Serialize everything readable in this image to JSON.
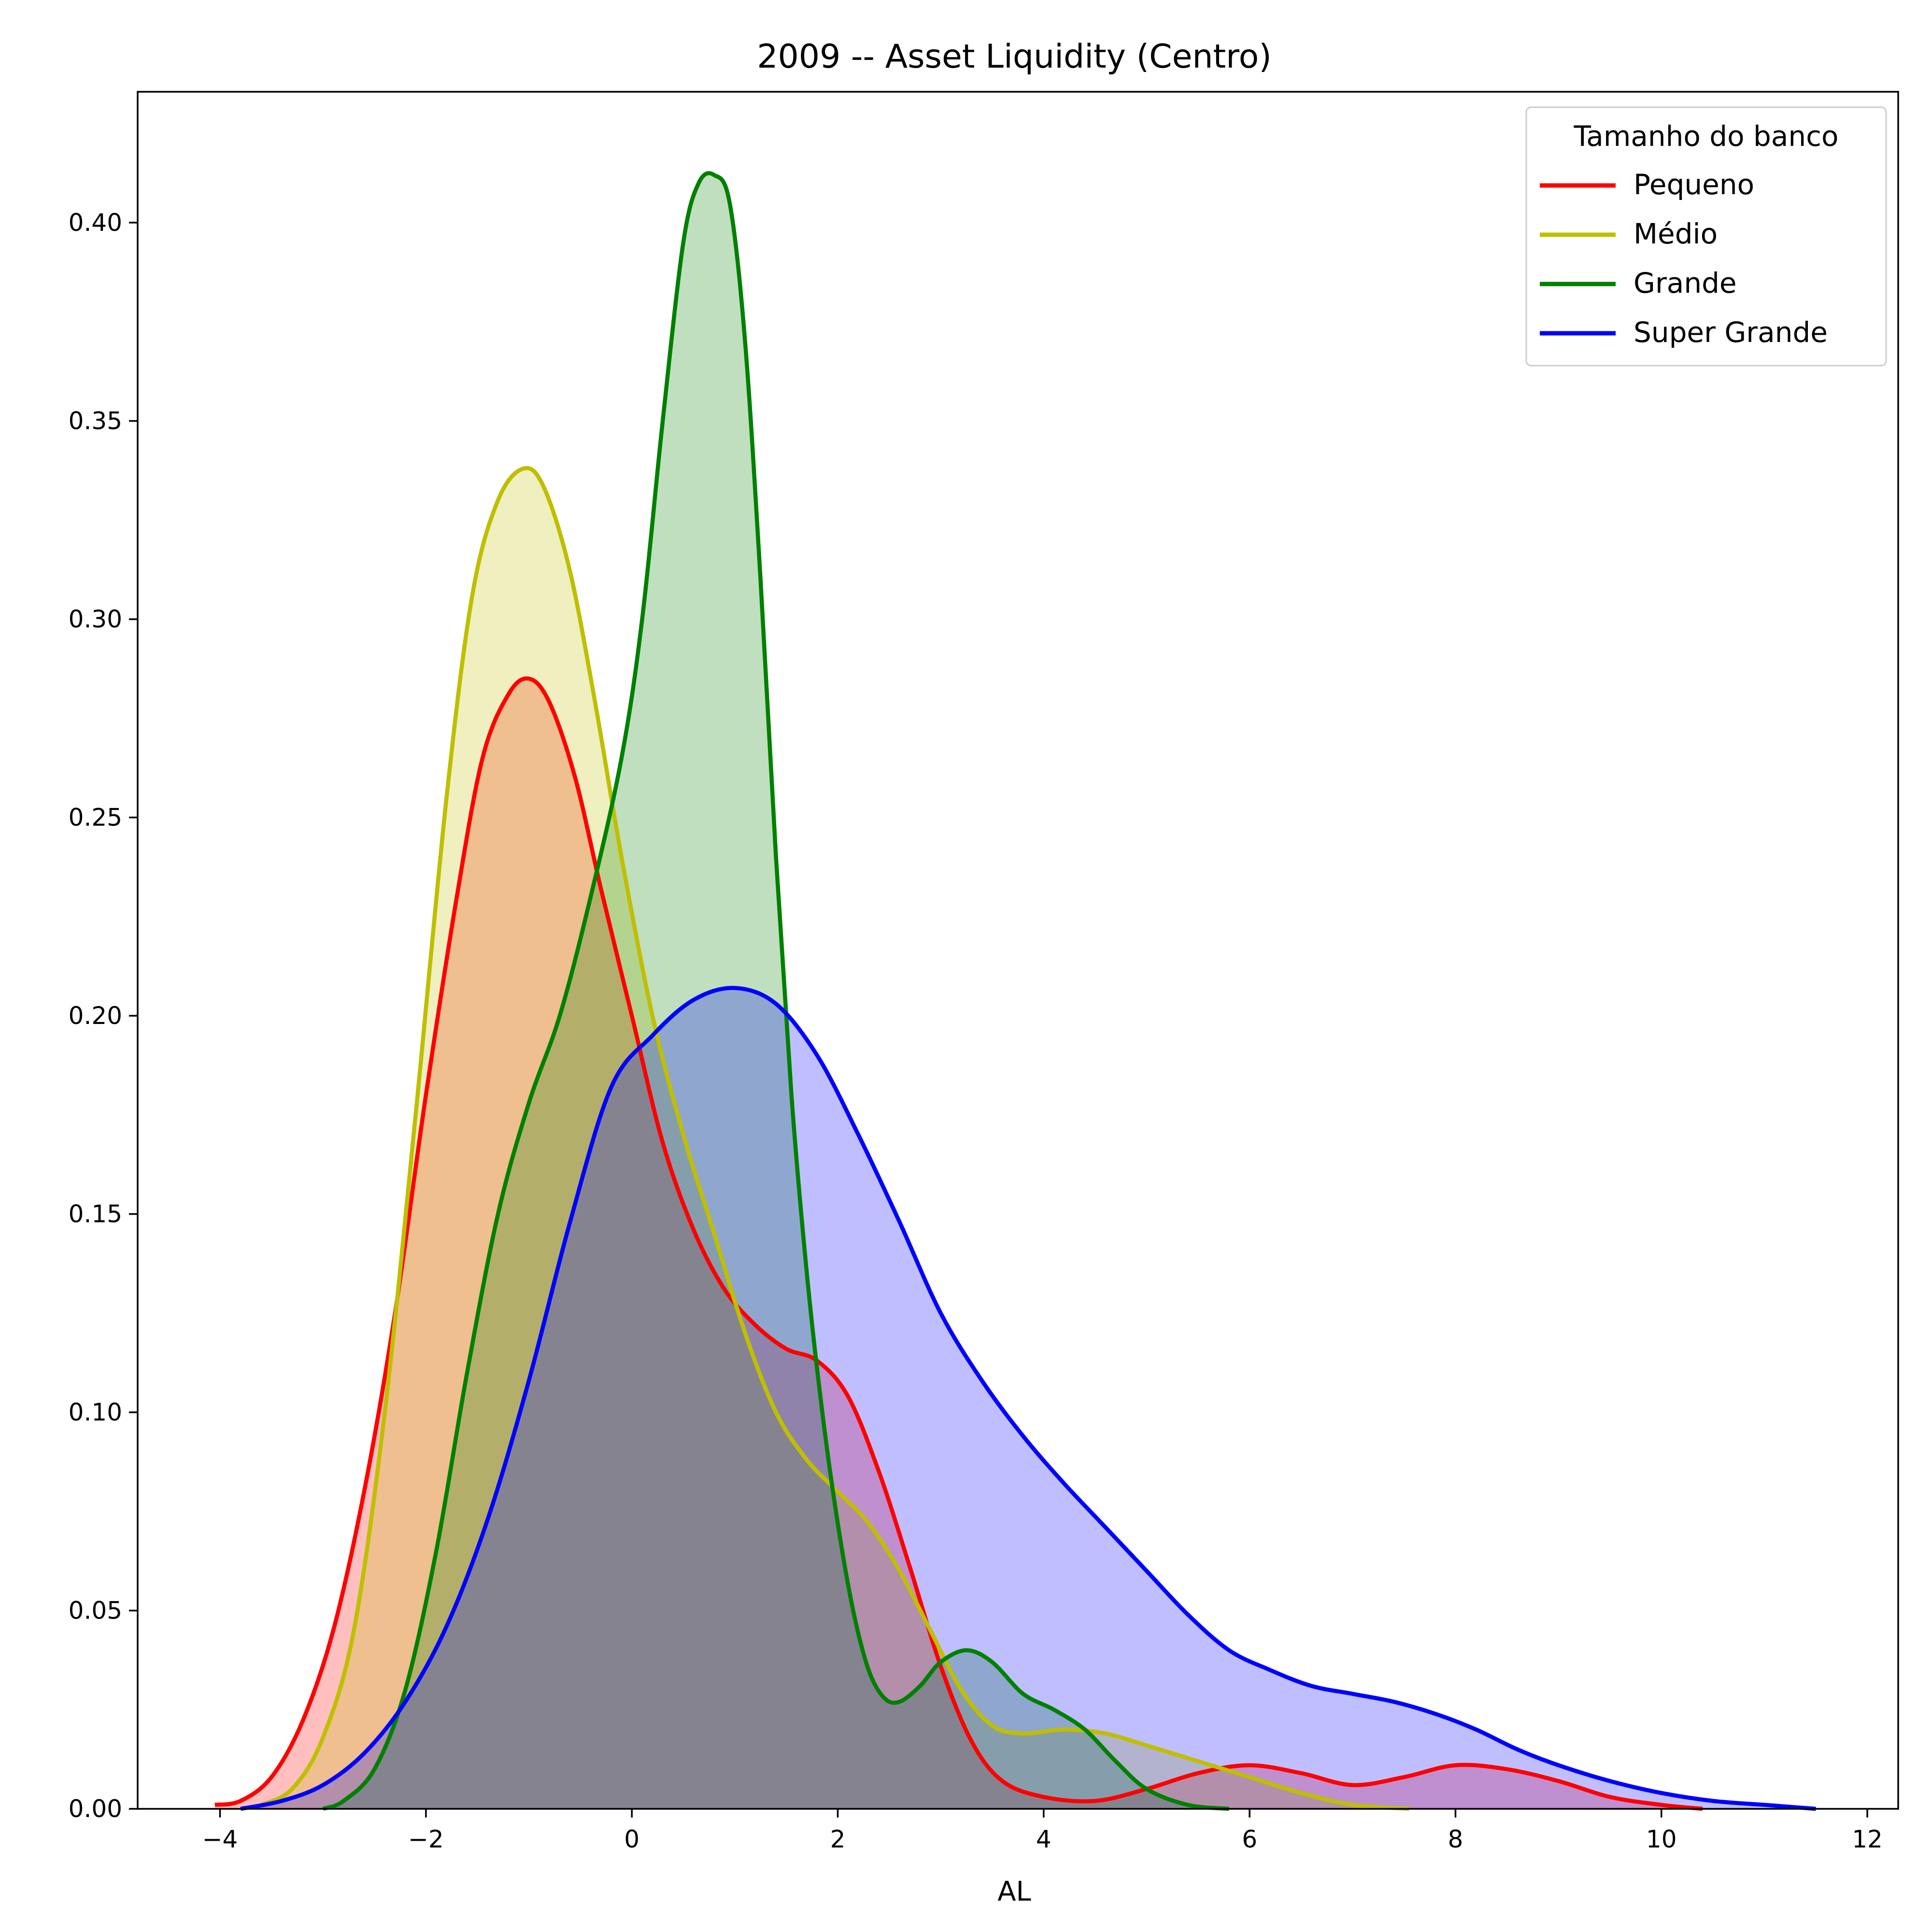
{
  "chart_data": {
    "type": "area",
    "title": "2009 -- Asset Liquidity (Centro)",
    "xlabel": "AL",
    "ylabel": "",
    "xlim": [
      -4.8,
      12.3
    ],
    "ylim": [
      0,
      0.433
    ],
    "xticks": [
      -4,
      -2,
      0,
      2,
      4,
      6,
      8,
      10,
      12
    ],
    "xtick_labels": [
      "−4",
      "−2",
      "0",
      "2",
      "4",
      "6",
      "8",
      "10",
      "12"
    ],
    "yticks": [
      0,
      0.05,
      0.1,
      0.15,
      0.2,
      0.25,
      0.3,
      0.35,
      0.4
    ],
    "ytick_labels": [
      "0.00",
      "0.05",
      "0.10",
      "0.15",
      "0.20",
      "0.25",
      "0.30",
      "0.35",
      "0.40"
    ],
    "grid": false,
    "legend": {
      "title": "Tamanho do banco",
      "placement": "top-right"
    },
    "series": [
      {
        "name": "Pequeno",
        "color": "#ff0000",
        "fill": "#ff0000",
        "points": [
          [
            -4.05,
            0.001
          ],
          [
            -3.8,
            0.002
          ],
          [
            -3.5,
            0.008
          ],
          [
            -3.2,
            0.022
          ],
          [
            -2.9,
            0.045
          ],
          [
            -2.6,
            0.08
          ],
          [
            -2.3,
            0.125
          ],
          [
            -2.0,
            0.18
          ],
          [
            -1.7,
            0.23
          ],
          [
            -1.45,
            0.265
          ],
          [
            -1.2,
            0.281
          ],
          [
            -1.0,
            0.285
          ],
          [
            -0.8,
            0.279
          ],
          [
            -0.55,
            0.26
          ],
          [
            -0.3,
            0.232
          ],
          [
            0.0,
            0.2
          ],
          [
            0.3,
            0.168
          ],
          [
            0.6,
            0.146
          ],
          [
            0.9,
            0.131
          ],
          [
            1.2,
            0.122
          ],
          [
            1.5,
            0.116
          ],
          [
            1.8,
            0.113
          ],
          [
            2.1,
            0.104
          ],
          [
            2.4,
            0.085
          ],
          [
            2.7,
            0.061
          ],
          [
            3.0,
            0.036
          ],
          [
            3.3,
            0.017
          ],
          [
            3.6,
            0.007
          ],
          [
            4.0,
            0.003
          ],
          [
            4.5,
            0.002
          ],
          [
            5.0,
            0.005
          ],
          [
            5.5,
            0.009
          ],
          [
            6.0,
            0.011
          ],
          [
            6.5,
            0.009
          ],
          [
            7.0,
            0.006
          ],
          [
            7.5,
            0.008
          ],
          [
            8.0,
            0.011
          ],
          [
            8.5,
            0.01
          ],
          [
            9.0,
            0.007
          ],
          [
            9.5,
            0.003
          ],
          [
            10.0,
            0.001
          ],
          [
            10.4,
            0.0
          ]
        ]
      },
      {
        "name": "Médio",
        "color": "#bfbf00",
        "fill": "#bfbf00",
        "points": [
          [
            -3.6,
            0.001
          ],
          [
            -3.3,
            0.005
          ],
          [
            -3.0,
            0.018
          ],
          [
            -2.7,
            0.045
          ],
          [
            -2.4,
            0.1
          ],
          [
            -2.1,
            0.175
          ],
          [
            -1.8,
            0.255
          ],
          [
            -1.55,
            0.306
          ],
          [
            -1.3,
            0.33
          ],
          [
            -1.05,
            0.338
          ],
          [
            -0.85,
            0.333
          ],
          [
            -0.6,
            0.312
          ],
          [
            -0.35,
            0.278
          ],
          [
            -0.1,
            0.24
          ],
          [
            0.2,
            0.2
          ],
          [
            0.5,
            0.17
          ],
          [
            0.8,
            0.145
          ],
          [
            1.1,
            0.12
          ],
          [
            1.4,
            0.1
          ],
          [
            1.7,
            0.088
          ],
          [
            2.0,
            0.08
          ],
          [
            2.3,
            0.072
          ],
          [
            2.6,
            0.06
          ],
          [
            2.9,
            0.045
          ],
          [
            3.2,
            0.03
          ],
          [
            3.5,
            0.021
          ],
          [
            3.8,
            0.019
          ],
          [
            4.2,
            0.02
          ],
          [
            4.6,
            0.019
          ],
          [
            5.0,
            0.016
          ],
          [
            5.5,
            0.012
          ],
          [
            6.0,
            0.008
          ],
          [
            6.5,
            0.004
          ],
          [
            7.0,
            0.001
          ],
          [
            7.55,
            0.0
          ]
        ]
      },
      {
        "name": "Grande",
        "color": "#008000",
        "fill": "#008000",
        "points": [
          [
            -3.0,
            0.0
          ],
          [
            -2.8,
            0.002
          ],
          [
            -2.5,
            0.01
          ],
          [
            -2.2,
            0.03
          ],
          [
            -1.9,
            0.065
          ],
          [
            -1.6,
            0.11
          ],
          [
            -1.3,
            0.15
          ],
          [
            -1.0,
            0.178
          ],
          [
            -0.7,
            0.2
          ],
          [
            -0.4,
            0.23
          ],
          [
            -0.1,
            0.265
          ],
          [
            0.1,
            0.3
          ],
          [
            0.3,
            0.35
          ],
          [
            0.5,
            0.395
          ],
          [
            0.65,
            0.41
          ],
          [
            0.8,
            0.412
          ],
          [
            0.95,
            0.405
          ],
          [
            1.1,
            0.37
          ],
          [
            1.25,
            0.31
          ],
          [
            1.4,
            0.24
          ],
          [
            1.55,
            0.18
          ],
          [
            1.7,
            0.135
          ],
          [
            1.85,
            0.1
          ],
          [
            2.0,
            0.072
          ],
          [
            2.15,
            0.05
          ],
          [
            2.3,
            0.035
          ],
          [
            2.45,
            0.028
          ],
          [
            2.6,
            0.027
          ],
          [
            2.8,
            0.031
          ],
          [
            3.0,
            0.037
          ],
          [
            3.25,
            0.04
          ],
          [
            3.5,
            0.037
          ],
          [
            3.8,
            0.029
          ],
          [
            4.1,
            0.025
          ],
          [
            4.4,
            0.02
          ],
          [
            4.7,
            0.012
          ],
          [
            5.0,
            0.005
          ],
          [
            5.4,
            0.001
          ],
          [
            5.8,
            0.0
          ]
        ]
      },
      {
        "name": "Super Grande",
        "color": "#0000ff",
        "fill": "#0000ff",
        "points": [
          [
            -3.8,
            0.0
          ],
          [
            -3.4,
            0.002
          ],
          [
            -3.0,
            0.006
          ],
          [
            -2.6,
            0.014
          ],
          [
            -2.2,
            0.027
          ],
          [
            -1.8,
            0.046
          ],
          [
            -1.4,
            0.073
          ],
          [
            -1.0,
            0.108
          ],
          [
            -0.6,
            0.148
          ],
          [
            -0.2,
            0.182
          ],
          [
            0.2,
            0.195
          ],
          [
            0.6,
            0.204
          ],
          [
            1.0,
            0.207
          ],
          [
            1.4,
            0.203
          ],
          [
            1.8,
            0.19
          ],
          [
            2.2,
            0.17
          ],
          [
            2.6,
            0.148
          ],
          [
            3.0,
            0.125
          ],
          [
            3.4,
            0.108
          ],
          [
            3.8,
            0.094
          ],
          [
            4.2,
            0.082
          ],
          [
            4.6,
            0.071
          ],
          [
            5.0,
            0.06
          ],
          [
            5.4,
            0.049
          ],
          [
            5.8,
            0.04
          ],
          [
            6.2,
            0.035
          ],
          [
            6.6,
            0.031
          ],
          [
            7.0,
            0.029
          ],
          [
            7.4,
            0.027
          ],
          [
            7.8,
            0.024
          ],
          [
            8.2,
            0.02
          ],
          [
            8.6,
            0.015
          ],
          [
            9.0,
            0.011
          ],
          [
            9.5,
            0.007
          ],
          [
            10.0,
            0.004
          ],
          [
            10.5,
            0.002
          ],
          [
            11.0,
            0.001
          ],
          [
            11.5,
            0.0
          ]
        ]
      }
    ]
  }
}
